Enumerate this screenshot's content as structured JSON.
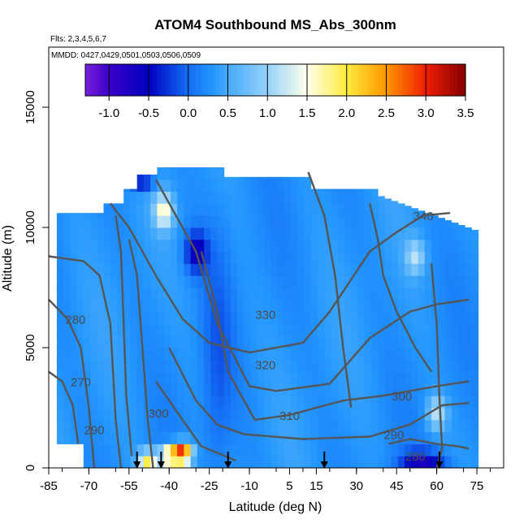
{
  "chart_data": {
    "type": "heatmap",
    "title": "ATOM4 Southbound MS_Abs_300nm",
    "flights_text": "Flts: 2,3,4,5,6,7",
    "dates_text": "MMDD: 0427,0429,0501,0503,0506,0509",
    "xlabel": "Latitude (deg N)",
    "ylabel": "Altitude (m)",
    "xlim": [
      -85,
      85
    ],
    "ylim": [
      0,
      17500
    ],
    "x_ticks": [
      "-85",
      "-70",
      "-55",
      "-40",
      "-25",
      "-10",
      "5",
      "15",
      "30",
      "45",
      "60",
      "75"
    ],
    "y_ticks": [
      "0",
      "5000",
      "10000",
      "15000"
    ],
    "colorbar": {
      "labels": [
        "-1.0",
        "-0.5",
        "0.0",
        "0.5",
        "1.0",
        "1.5",
        "2.0",
        "2.5",
        "3.0",
        "3.5"
      ],
      "range": [
        -1.3,
        3.5
      ],
      "position": "top"
    },
    "contour_labels": [
      "340",
      "330",
      "320",
      "310",
      "300",
      "290",
      "280",
      "270",
      "290",
      "300",
      "280"
    ],
    "profile_markers_lat": [
      -52,
      -43,
      -18,
      18,
      61
    ],
    "dominant_value_range": [
      0.0,
      0.4
    ],
    "hotspots": [
      {
        "lat": -35,
        "alt": 600,
        "value": 3.2
      },
      {
        "lat": -40,
        "alt": 500,
        "value": 2.2
      },
      {
        "lat": -48,
        "alt": 300,
        "value": 2.0
      },
      {
        "lat": -42,
        "alt": 10700,
        "value": 1.6
      },
      {
        "lat": 60,
        "alt": 2300,
        "value": 1.2
      },
      {
        "lat": 52,
        "alt": 8800,
        "value": 1.1
      }
    ]
  }
}
